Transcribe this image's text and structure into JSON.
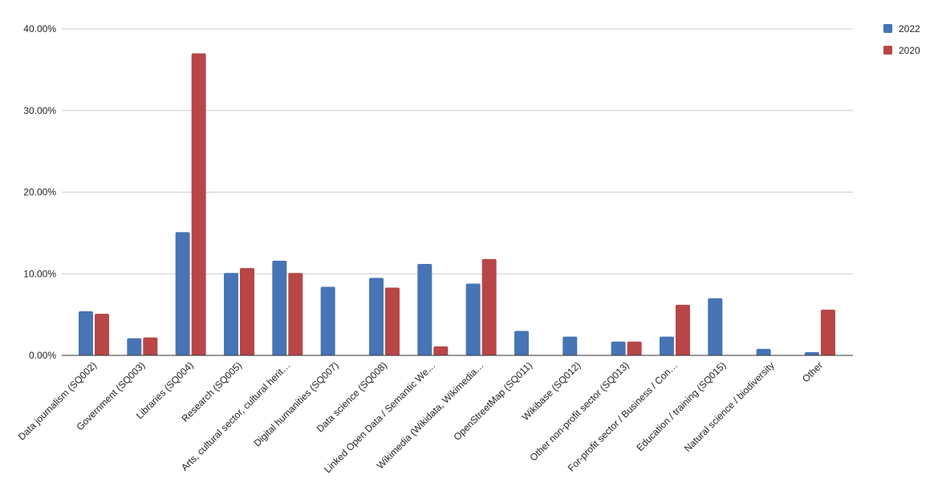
{
  "chart_data": {
    "type": "bar",
    "title": "",
    "xlabel": "",
    "ylabel": "",
    "ylim": [
      0,
      40
    ],
    "yticks": [
      "0.00%",
      "10.00%",
      "20.00%",
      "30.00%",
      "40.00%"
    ],
    "grid": true,
    "legend_position": "top-right",
    "categories": [
      "Data journalism (SQ002)",
      "Government (SQ003)",
      "Libraries (SQ004)",
      "Research (SQ005)",
      "Arts, cultural sector, cultural herit…",
      "Digital humanities (SQ007)",
      "Data science (SQ008)",
      "Linked Open Data / Semantic We…",
      "Wikimedia (Wikidata, Wikimedia…",
      "OpenStreetMap (SQ011)",
      "Wikibase (SQ012)",
      "Other non-profit sector (SQ013)",
      "For-profit sector / Business / Con…",
      "Education / training (SQ015)",
      "Natural science / biodiversity",
      "Other"
    ],
    "series": [
      {
        "name": "2022",
        "color": "#4774b4",
        "values": [
          5.4,
          2.1,
          15.1,
          10.1,
          11.6,
          8.4,
          9.5,
          11.2,
          8.8,
          3.0,
          2.3,
          1.7,
          2.3,
          7.0,
          0.8,
          0.4
        ]
      },
      {
        "name": "2020",
        "color": "#b84646",
        "values": [
          5.1,
          2.2,
          37.0,
          10.7,
          10.1,
          0,
          8.3,
          1.1,
          11.8,
          0,
          0,
          1.7,
          6.2,
          0,
          0,
          5.6
        ]
      }
    ]
  }
}
